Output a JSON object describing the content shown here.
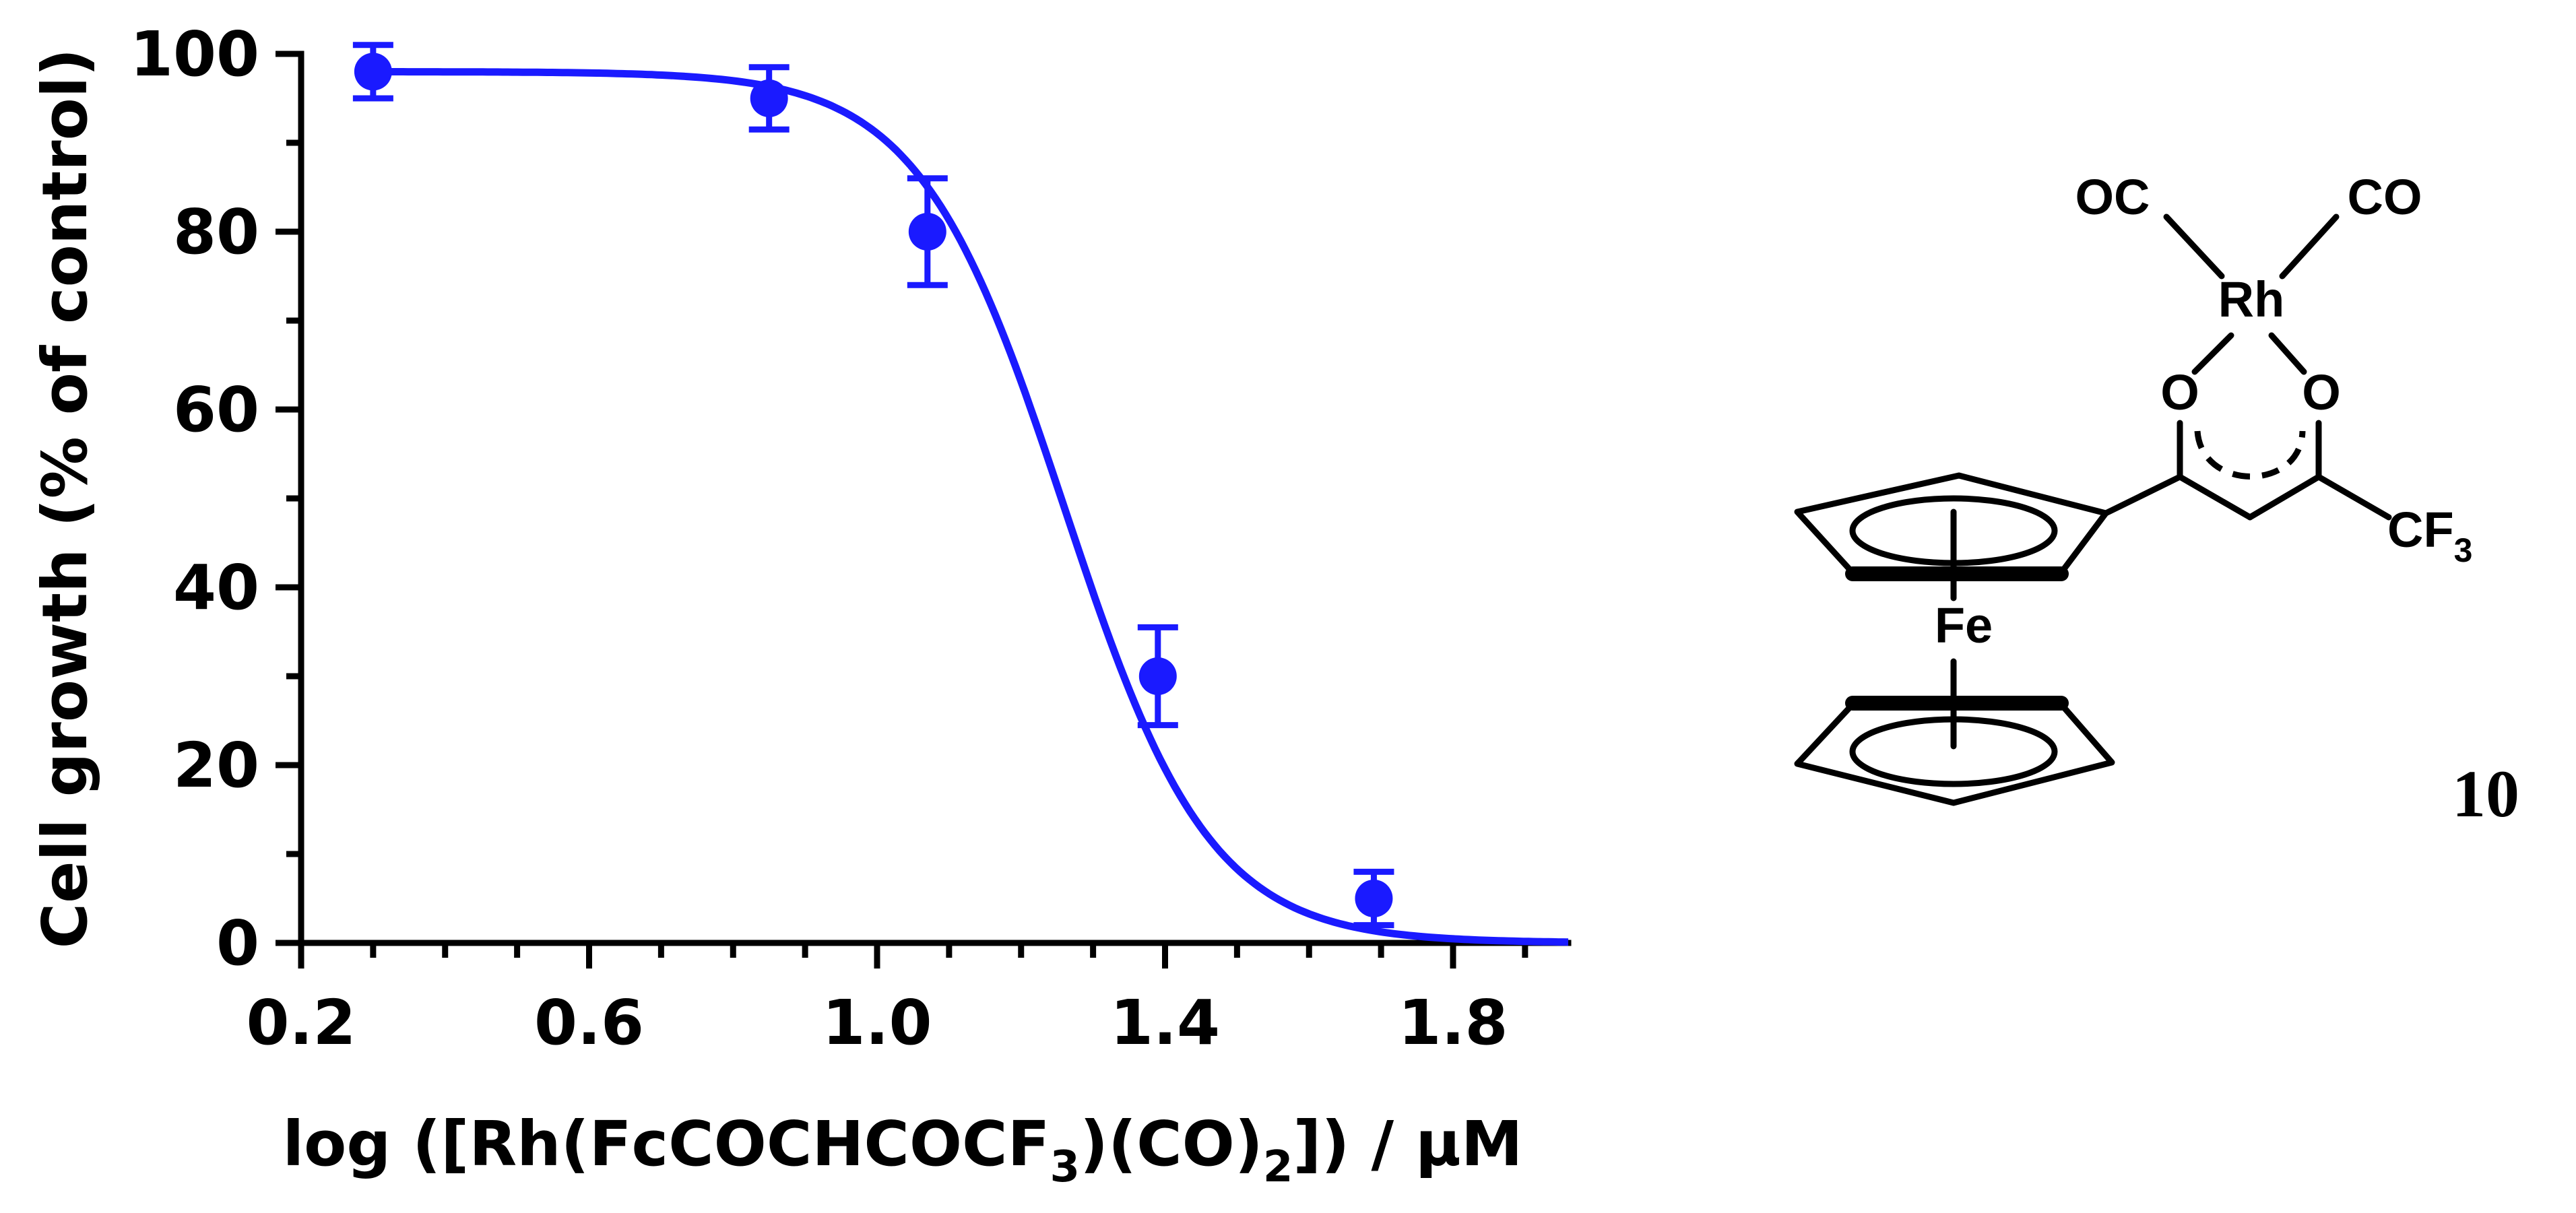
{
  "chart_data": {
    "type": "scatter",
    "xlabel_parts": [
      "log ([Rh(FcCOCHCOCF",
      "3",
      ")(CO)",
      "2",
      "]) / µM"
    ],
    "ylabel": "Cell growth (% of control)",
    "xlim": [
      0.2,
      1.96
    ],
    "ylim": [
      0,
      100
    ],
    "x_ticks": [
      "0.2",
      "0.6",
      "1.0",
      "1.4",
      "1.8"
    ],
    "y_ticks": [
      "0",
      "20",
      "40",
      "60",
      "80",
      "100"
    ],
    "x_minor_step": 0.1,
    "y_minor_step": 10,
    "points": [
      {
        "x": 0.3,
        "y": 98,
        "err": 3
      },
      {
        "x": 0.85,
        "y": 95,
        "err": 3.5
      },
      {
        "x": 1.07,
        "y": 80,
        "err": 6
      },
      {
        "x": 1.39,
        "y": 30,
        "err": 5.5
      },
      {
        "x": 1.69,
        "y": 5,
        "err": 3
      }
    ],
    "fit": {
      "model": "logistic",
      "top": 98,
      "bottom": 0,
      "log_ic50": 1.26,
      "hill": 4.3
    },
    "color": "#1a1aff"
  },
  "structure": {
    "compound_number": "10",
    "atoms": {
      "oc": "OC",
      "co": "CO",
      "rh": "Rh",
      "o_left": "O",
      "o_right": "O",
      "cf": "CF",
      "cf_sub": "3",
      "fe": "Fe"
    }
  }
}
